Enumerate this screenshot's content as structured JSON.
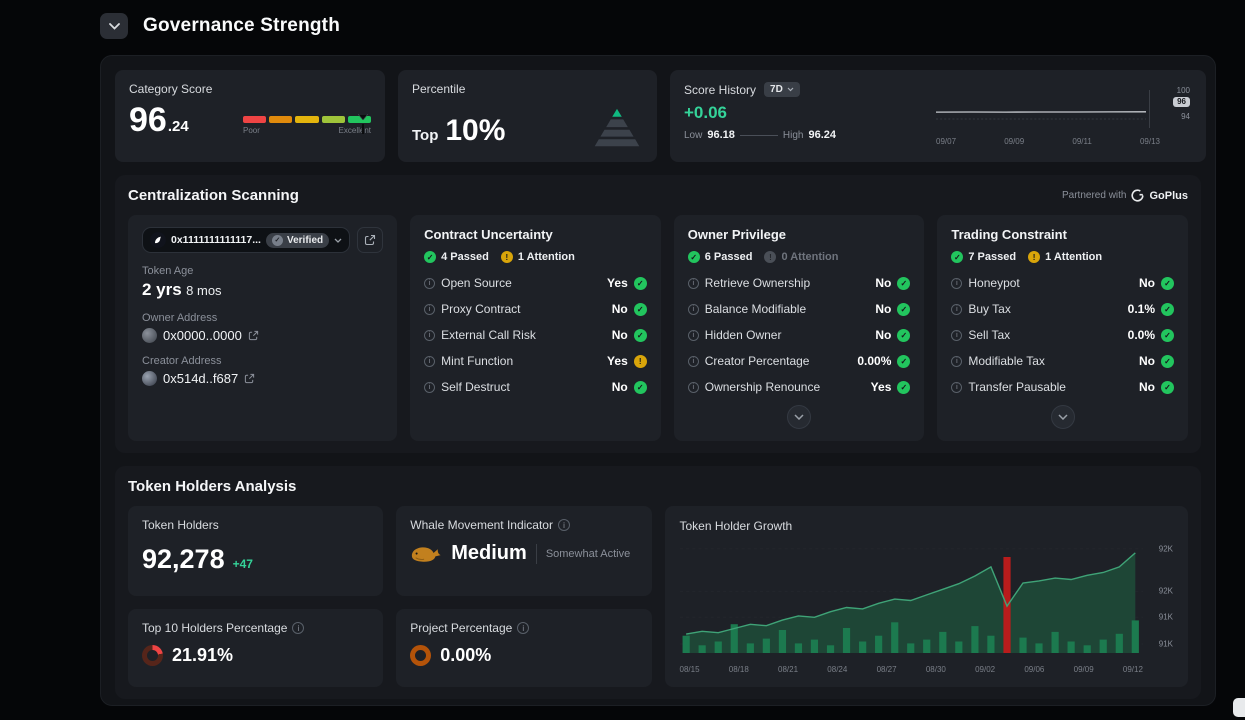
{
  "page": {
    "title": "Governance Strength"
  },
  "top": {
    "category_score": {
      "label": "Category Score",
      "value_main": "96",
      "value_decimal": ".24",
      "scale_min_label": "Poor",
      "scale_max_label": "Excellent",
      "segment_colors": [
        "#ef4444",
        "#e08a0c",
        "#e3b40d",
        "#9fc43a",
        "#22c55e"
      ]
    },
    "percentile": {
      "label": "Percentile",
      "prefix": "Top",
      "value": "10%"
    },
    "score_history": {
      "label": "Score History",
      "range": "7D",
      "change": "+0.06",
      "low_label": "Low",
      "low_value": "96.18",
      "high_label": "High",
      "high_value": "96.24"
    }
  },
  "centralization": {
    "title": "Centralization Scanning",
    "partner_prefix": "Partnered with",
    "partner_name": "GoPlus",
    "token": {
      "address": "0x1111111111117...",
      "verified_label": "Verified",
      "age_label": "Token Age",
      "age_years": "2 yrs",
      "age_months": "8 mos",
      "owner_label": "Owner Address",
      "owner_address": "0x0000..0000",
      "creator_label": "Creator Address",
      "creator_address": "0x514d..f687"
    },
    "scan_cards": [
      {
        "title": "Contract Uncertainty",
        "passed": "4 Passed",
        "attention": "1 Attention",
        "attention_state": "warn",
        "expandable": false,
        "rows": [
          {
            "label": "Open Source",
            "value": "Yes",
            "status": "ok"
          },
          {
            "label": "Proxy Contract",
            "value": "No",
            "status": "ok"
          },
          {
            "label": "External Call Risk",
            "value": "No",
            "status": "ok"
          },
          {
            "label": "Mint Function",
            "value": "Yes",
            "status": "warn"
          },
          {
            "label": "Self Destruct",
            "value": "No",
            "status": "ok"
          }
        ]
      },
      {
        "title": "Owner Privilege",
        "passed": "6 Passed",
        "attention": "0 Attention",
        "attention_state": "muted",
        "expandable": true,
        "rows": [
          {
            "label": "Retrieve Ownership",
            "value": "No",
            "status": "ok"
          },
          {
            "label": "Balance Modifiable",
            "value": "No",
            "status": "ok"
          },
          {
            "label": "Hidden Owner",
            "value": "No",
            "status": "ok"
          },
          {
            "label": "Creator Percentage",
            "value": "0.00%",
            "status": "ok"
          },
          {
            "label": "Ownership Renounce",
            "value": "Yes",
            "status": "ok"
          }
        ]
      },
      {
        "title": "Trading Constraint",
        "passed": "7 Passed",
        "attention": "1 Attention",
        "attention_state": "warn",
        "expandable": true,
        "rows": [
          {
            "label": "Honeypot",
            "value": "No",
            "status": "ok"
          },
          {
            "label": "Buy Tax",
            "value": "0.1%",
            "status": "ok"
          },
          {
            "label": "Sell Tax",
            "value": "0.0%",
            "status": "ok"
          },
          {
            "label": "Modifiable Tax",
            "value": "No",
            "status": "ok"
          },
          {
            "label": "Transfer Pausable",
            "value": "No",
            "status": "ok"
          }
        ]
      }
    ]
  },
  "holders": {
    "title": "Token Holders Analysis",
    "token_holders": {
      "label": "Token Holders",
      "value": "92,278",
      "change": "+47"
    },
    "whale": {
      "label": "Whale Movement Indicator",
      "level": "Medium",
      "sub": "Somewhat Active"
    },
    "top10": {
      "label": "Top 10 Holders Percentage",
      "value": "21.91%",
      "percent": 21.91,
      "fill_color": "#ef4444",
      "track_color": "#56251a"
    },
    "project": {
      "label": "Project Percentage",
      "value": "0.00%",
      "percent": 0,
      "fill_color": "#f59e0b",
      "track_color": "#b45309"
    },
    "growth": {
      "title": "Token Holder Growth"
    }
  },
  "chart_data": [
    {
      "type": "line",
      "title": "Score History (7D)",
      "x": [
        "09/07",
        "09/08",
        "09/09",
        "09/10",
        "09/11",
        "09/12",
        "09/13"
      ],
      "values": [
        96.18,
        96.2,
        96.19,
        96.21,
        96.2,
        96.22,
        96.24
      ],
      "ylim": [
        94,
        100
      ],
      "y_ticks": [
        "100",
        "96",
        "94"
      ],
      "current": "96",
      "x_ticks": [
        "09/07",
        "09/09",
        "09/11",
        "09/13"
      ],
      "line_color": "#c7cacf"
    },
    {
      "type": "area+bar",
      "title": "Token Holder Growth",
      "x_ticks": [
        "08/15",
        "08/18",
        "08/21",
        "08/24",
        "08/27",
        "08/30",
        "09/02",
        "09/06",
        "09/09",
        "09/12"
      ],
      "area_values": [
        91.12,
        91.16,
        91.14,
        91.2,
        91.26,
        91.24,
        91.32,
        91.38,
        91.36,
        91.44,
        91.5,
        91.48,
        91.56,
        91.62,
        91.6,
        91.68,
        91.76,
        91.84,
        91.95,
        92.08,
        91.52,
        91.85,
        91.88,
        91.92,
        91.9,
        91.96,
        92.0,
        92.08,
        92.28
      ],
      "bar_values": [
        18,
        8,
        12,
        30,
        10,
        15,
        24,
        10,
        14,
        8,
        26,
        12,
        18,
        32,
        10,
        14,
        22,
        12,
        28,
        18,
        100,
        16,
        10,
        22,
        12,
        8,
        14,
        20,
        34
      ],
      "bar_highlight_index": 20,
      "ylim": [
        90.85,
        92.45
      ],
      "y_ticks": [
        "92K",
        "92K",
        "91K",
        "91K"
      ],
      "area_color": "#1e4a39",
      "line_color": "#3fa377",
      "bar_color": "#1c7a4f",
      "bar_highlight_color": "#b91c1c"
    }
  ]
}
